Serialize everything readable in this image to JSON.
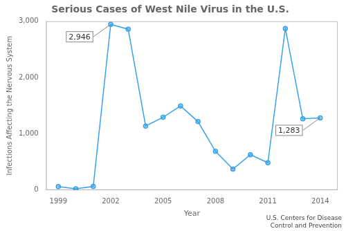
{
  "chart_data": {
    "type": "line",
    "title": "Serious Cases of West Nile Virus in the U.S.",
    "xlabel": "Year",
    "ylabel": "Infections Affecting the Nervous System",
    "source": "U.S. Centers for Disease\nControl and Prevention",
    "x": [
      1999,
      2000,
      2001,
      2002,
      2003,
      2004,
      2005,
      2006,
      2007,
      2008,
      2009,
      2010,
      2011,
      2012,
      2013,
      2014
    ],
    "values": [
      62,
      21,
      64,
      2946,
      2860,
      1139,
      1294,
      1495,
      1217,
      689,
      373,
      629,
      486,
      2873,
      1267,
      1283
    ],
    "marker": "circle",
    "xlim": [
      1998.3,
      2015.0
    ],
    "xticks": [
      1999,
      2002,
      2005,
      2008,
      2011,
      2014
    ],
    "ylim": [
      0,
      3000
    ],
    "yticks": [
      0,
      {
        "value": 1000,
        "label": "1,000"
      },
      {
        "value": 2000,
        "label": "2,000"
      },
      {
        "value": 3000,
        "label": "3,000"
      }
    ],
    "grid": false,
    "annotations": [
      {
        "text": "2,946",
        "x": 2002,
        "y": 2946
      },
      {
        "text": "1,283",
        "x": 2014,
        "y": 1283
      }
    ]
  }
}
